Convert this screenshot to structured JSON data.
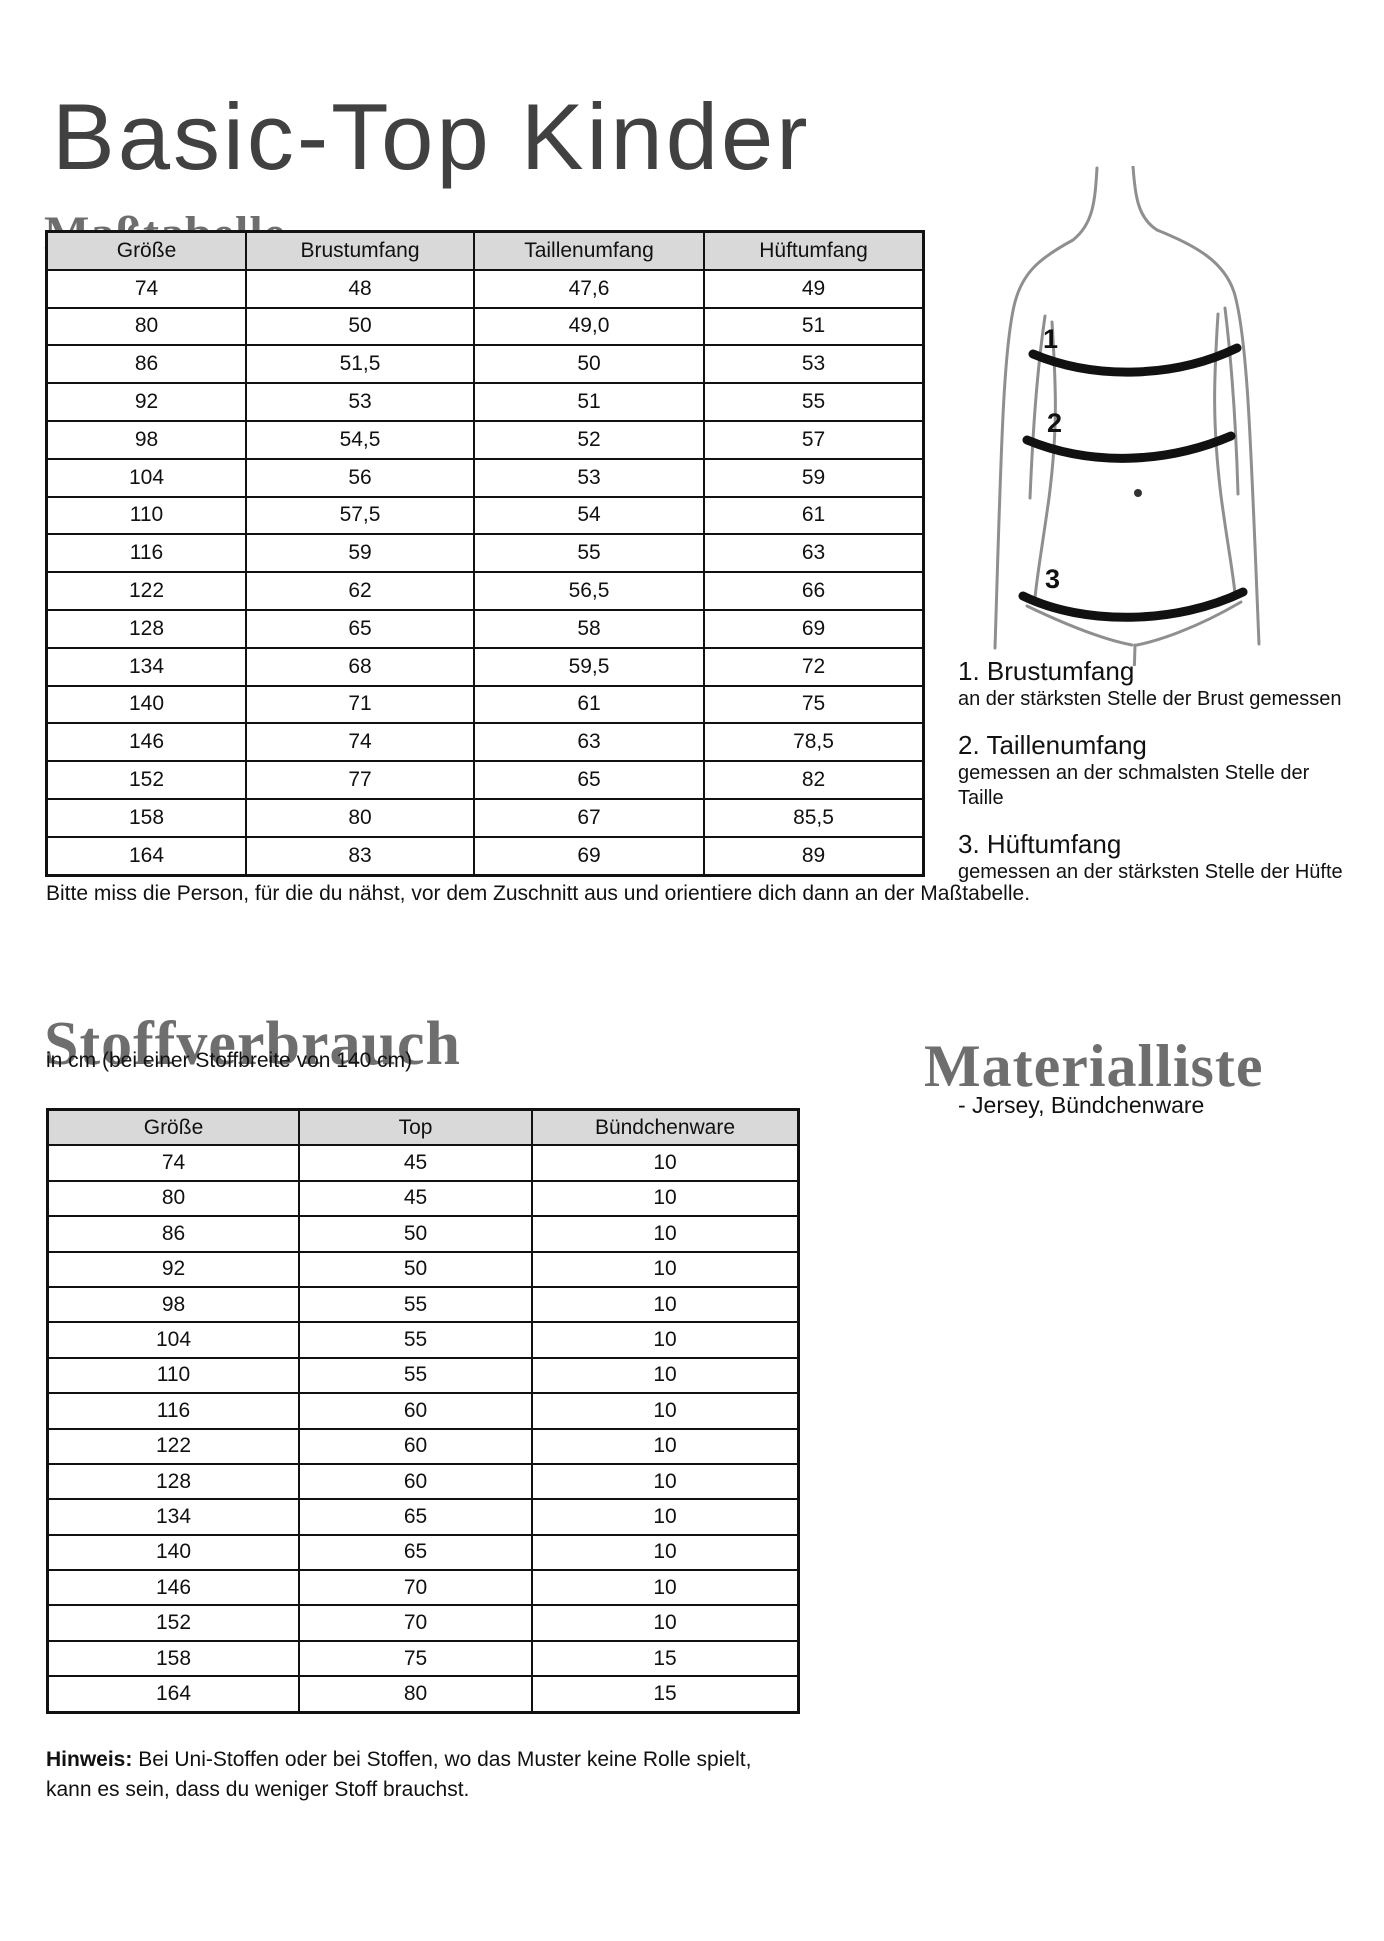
{
  "page": {
    "title": "Basic-Top Kinder"
  },
  "colors": {
    "heading_gray": "#6e6e6e",
    "title_gray": "#414141",
    "table_header_bg": "#d9d9d9",
    "table_border": "#111111",
    "figure_outline": "#8f8f8f",
    "figure_band": "#111111"
  },
  "masstabelle": {
    "heading": "Maßtabelle",
    "table": {
      "headers": [
        "Größe",
        "Brustumfang",
        "Taillenumfang",
        "Hüftumfang"
      ],
      "rows": [
        [
          "74",
          "48",
          "47,6",
          "49"
        ],
        [
          "80",
          "50",
          "49,0",
          "51"
        ],
        [
          "86",
          "51,5",
          "50",
          "53"
        ],
        [
          "92",
          "53",
          "51",
          "55"
        ],
        [
          "98",
          "54,5",
          "52",
          "57"
        ],
        [
          "104",
          "56",
          "53",
          "59"
        ],
        [
          "110",
          "57,5",
          "54",
          "61"
        ],
        [
          "116",
          "59",
          "55",
          "63"
        ],
        [
          "122",
          "62",
          "56,5",
          "66"
        ],
        [
          "128",
          "65",
          "58",
          "69"
        ],
        [
          "134",
          "68",
          "59,5",
          "72"
        ],
        [
          "140",
          "71",
          "61",
          "75"
        ],
        [
          "146",
          "74",
          "63",
          "78,5"
        ],
        [
          "152",
          "77",
          "65",
          "82"
        ],
        [
          "158",
          "80",
          "67",
          "85,5"
        ],
        [
          "164",
          "83",
          "69",
          "89"
        ]
      ]
    },
    "figure": {
      "labels": [
        "1",
        "2",
        "3"
      ]
    },
    "legend": [
      {
        "title": "1. Brustumfang",
        "desc": "an der stärksten Stelle der Brust gemessen"
      },
      {
        "title": "2. Taillenumfang",
        "desc": "gemessen an der schmalsten Stelle der Taille"
      },
      {
        "title": "3. Hüftumfang",
        "desc": "gemessen an der stärksten Stelle der Hüfte"
      }
    ],
    "note": "Bitte miss die Person, für die du nähst, vor dem Zuschnitt aus und orientiere dich dann an der Maßtabelle."
  },
  "stoffverbrauch": {
    "heading": "Stoffverbrauch",
    "subtitle": "in cm (bei einer Stoffbreite von 140 cm)",
    "table": {
      "headers": [
        "Größe",
        "Top",
        "Bündchenware"
      ],
      "rows": [
        [
          "74",
          "45",
          "10"
        ],
        [
          "80",
          "45",
          "10"
        ],
        [
          "86",
          "50",
          "10"
        ],
        [
          "92",
          "50",
          "10"
        ],
        [
          "98",
          "55",
          "10"
        ],
        [
          "104",
          "55",
          "10"
        ],
        [
          "110",
          "55",
          "10"
        ],
        [
          "116",
          "60",
          "10"
        ],
        [
          "122",
          "60",
          "10"
        ],
        [
          "128",
          "60",
          "10"
        ],
        [
          "134",
          "65",
          "10"
        ],
        [
          "140",
          "65",
          "10"
        ],
        [
          "146",
          "70",
          "10"
        ],
        [
          "152",
          "70",
          "10"
        ],
        [
          "158",
          "75",
          "15"
        ],
        [
          "164",
          "80",
          "15"
        ]
      ]
    },
    "hinweis_label": "Hinweis:",
    "hinweis_text": " Bei Uni-Stoffen oder bei Stoffen, wo das Muster keine Rolle spielt, kann es sein, dass du weniger Stoff brauchst."
  },
  "materialliste": {
    "heading": "Materialliste",
    "items": [
      "- Jersey, Bündchenware"
    ]
  }
}
